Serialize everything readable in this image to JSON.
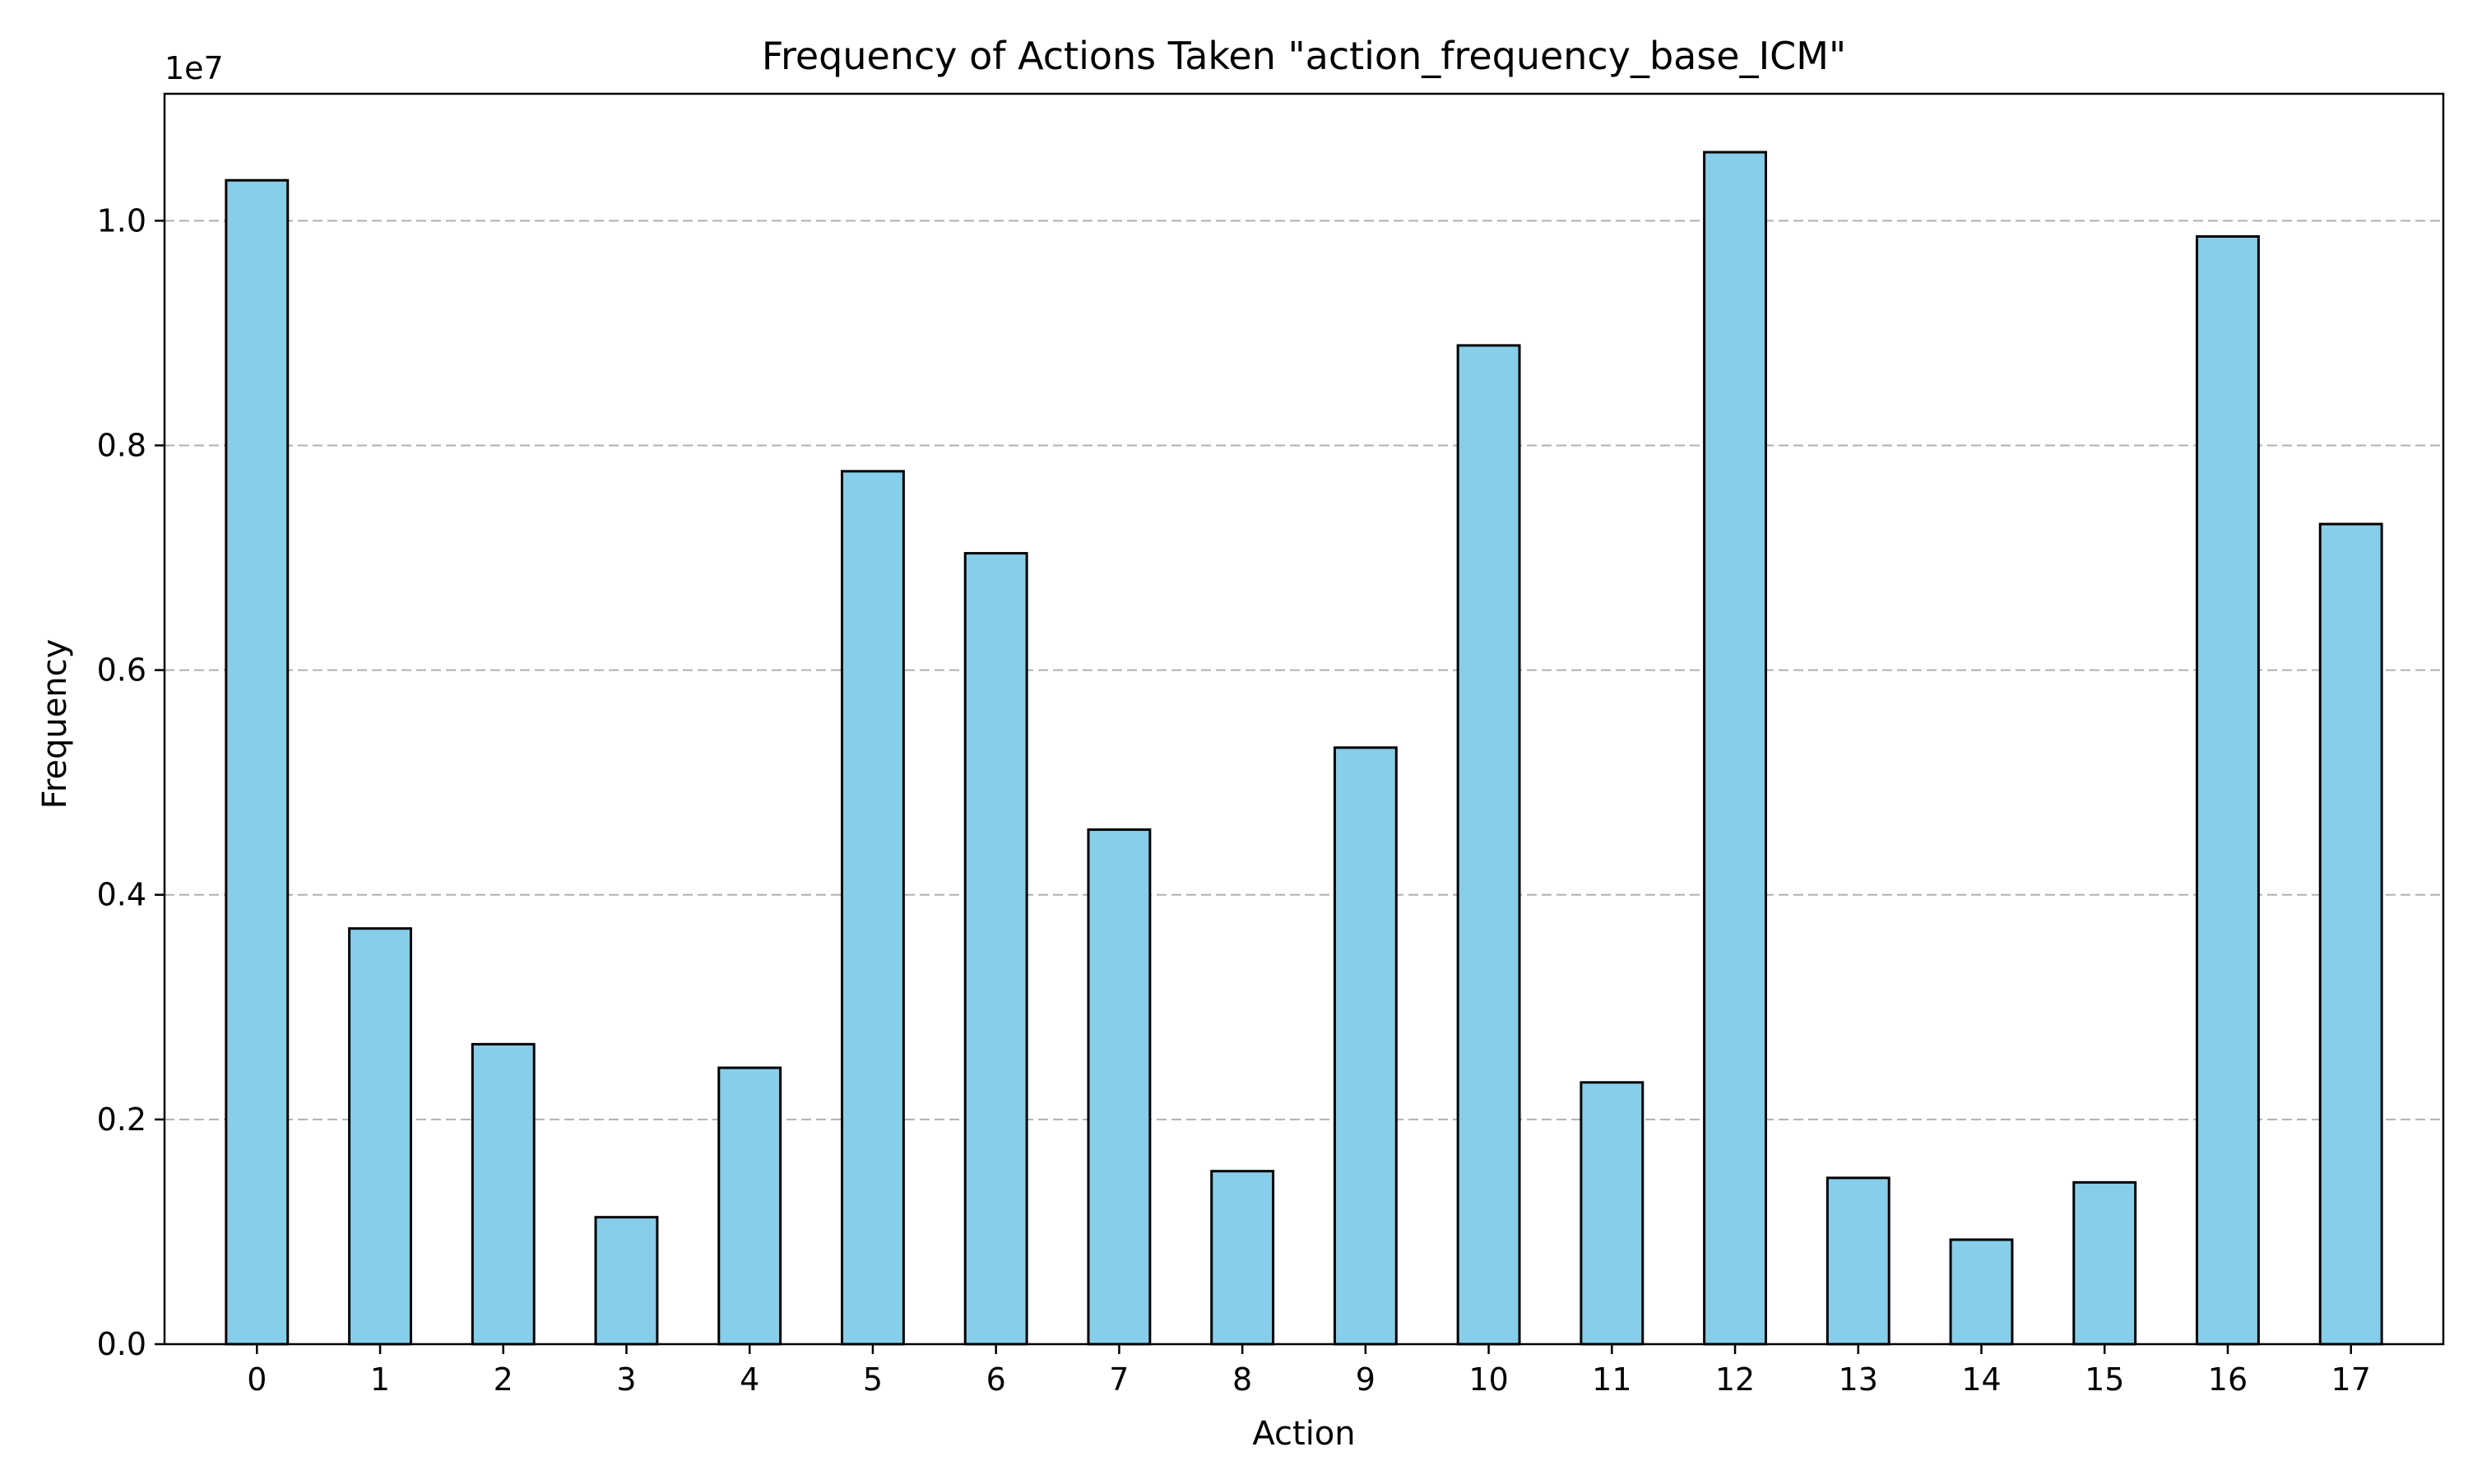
{
  "chart_data": {
    "type": "bar",
    "title": "Frequency of Actions Taken \"action_frequency_base_ICM\"",
    "xlabel": "Action",
    "ylabel": "Frequency",
    "y_offset_label": "1e7",
    "categories": [
      "0",
      "1",
      "2",
      "3",
      "4",
      "5",
      "6",
      "7",
      "8",
      "9",
      "10",
      "11",
      "12",
      "13",
      "14",
      "15",
      "16",
      "17"
    ],
    "values": [
      10360000,
      3700000,
      2670000,
      1130000,
      2460000,
      7770000,
      7040000,
      4580000,
      1540000,
      5310000,
      8890000,
      2330000,
      10610000,
      1480000,
      930000,
      1440000,
      9860000,
      7300000
    ],
    "ylim": [
      0,
      11130000
    ],
    "yticks": [
      0,
      2000000,
      4000000,
      6000000,
      8000000,
      10000000
    ],
    "ytick_labels": [
      "0.0",
      "0.2",
      "0.4",
      "0.6",
      "0.8",
      "1.0"
    ],
    "grid": "y-dashed",
    "bar_color": "#87ceeb",
    "bar_edge_color": "#000000",
    "grid_color": "#b0b0b0"
  }
}
